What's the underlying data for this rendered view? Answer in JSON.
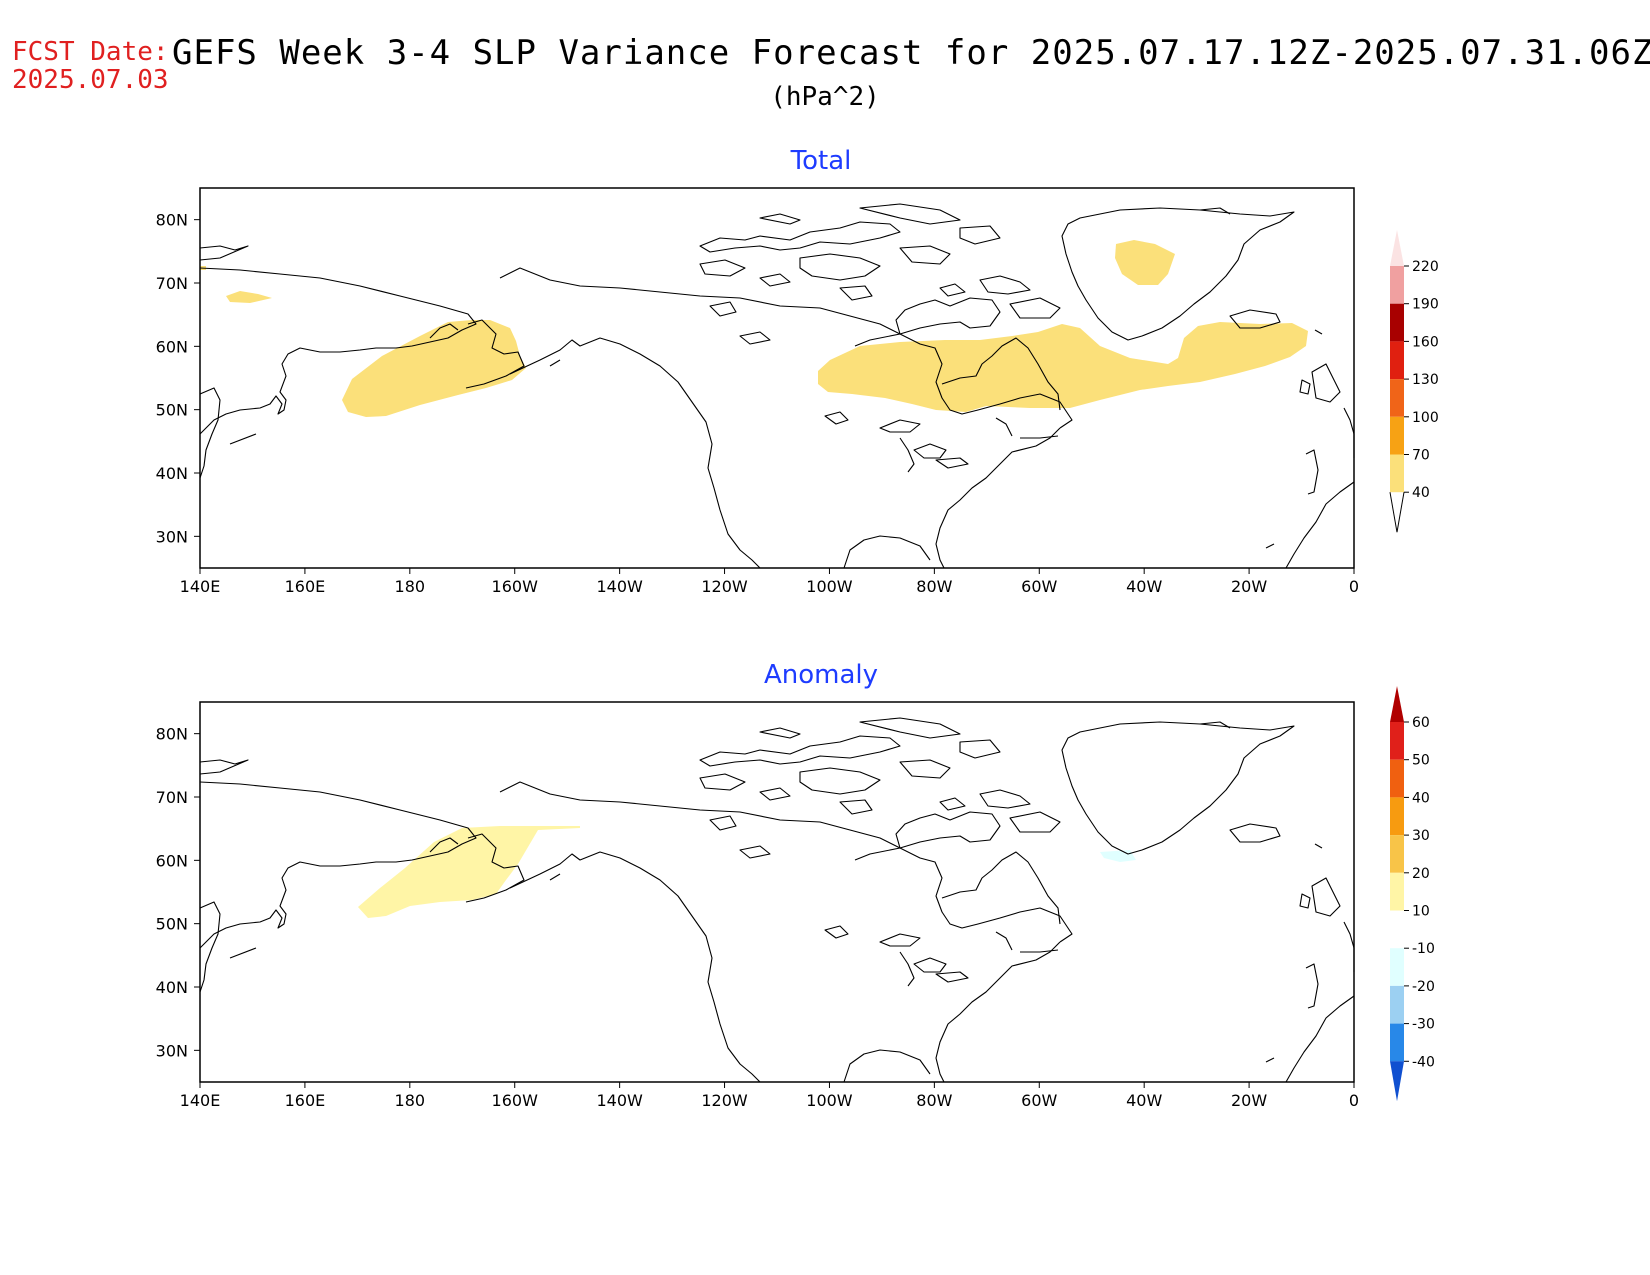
{
  "header": {
    "fcst_label": "FCST Date:",
    "fcst_date": "2025.07.03",
    "title": "GEFS Week 3-4 SLP Variance Forecast for 2025.07.17.12Z-2025.07.31.06Z",
    "units": "(hPa^2)"
  },
  "axes": {
    "lat_labels": [
      "80N",
      "70N",
      "60N",
      "50N",
      "40N",
      "30N"
    ],
    "lon_labels": [
      "140E",
      "160E",
      "180",
      "160W",
      "140W",
      "120W",
      "100W",
      "80W",
      "60W",
      "40W",
      "20W",
      "0"
    ],
    "lat_range": [
      25,
      85
    ],
    "lon_range": [
      140,
      360
    ]
  },
  "panels": [
    {
      "title": "Total",
      "colorbar": {
        "levels": [
          "220",
          "190",
          "160",
          "130",
          "100",
          "70",
          "40"
        ],
        "colors": [
          "#fbe3e3",
          "#f0a0a0",
          "#a80000",
          "#e02010",
          "#f06418",
          "#f7a214",
          "#fbe07a",
          "#ffffff"
        ]
      }
    },
    {
      "title": "Anomaly",
      "colorbar": {
        "levels": [
          "60",
          "50",
          "40",
          "30",
          "20",
          "10",
          "-10",
          "-20",
          "-30",
          "-40"
        ],
        "colors": [
          "#b00000",
          "#e0201a",
          "#f06010",
          "#f79b10",
          "#f8c448",
          "#fff5a6",
          "#ffffff",
          "#e0ffff",
          "#9cd0f2",
          "#2888e8",
          "#1050d0"
        ]
      }
    }
  ]
}
